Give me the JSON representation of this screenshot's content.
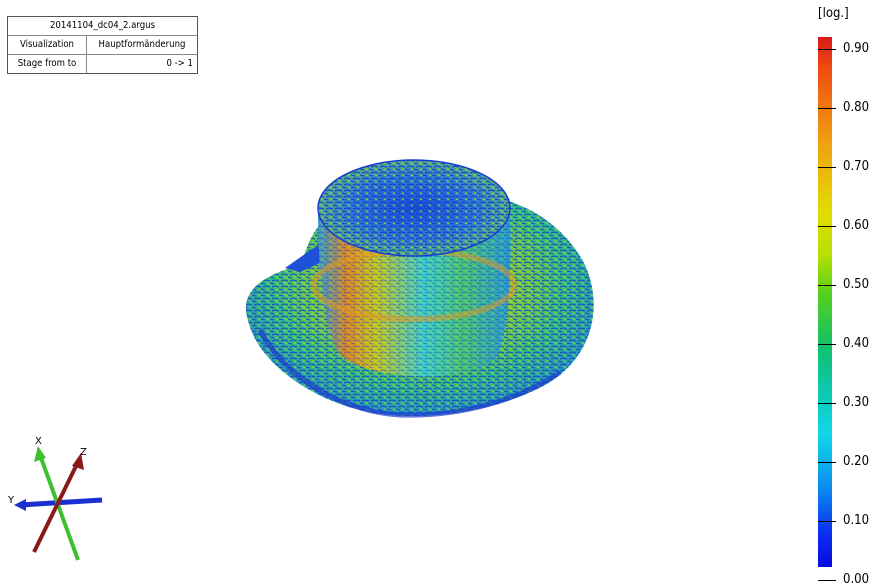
{
  "info": {
    "file": "20141104_dc04_2.argus",
    "rows": [
      {
        "key": "Visualization",
        "value": "Hauptformänderung"
      },
      {
        "key": "Stage from to",
        "value": "0 -> 1"
      }
    ]
  },
  "legend": {
    "unit": "[log.]",
    "ticks": [
      "0.90",
      "0.80",
      "0.70",
      "0.60",
      "0.50",
      "0.40",
      "0.30",
      "0.20",
      "0.10",
      "0.00"
    ]
  },
  "axes": {
    "x": "X",
    "y": "Y",
    "z": "Z"
  }
}
